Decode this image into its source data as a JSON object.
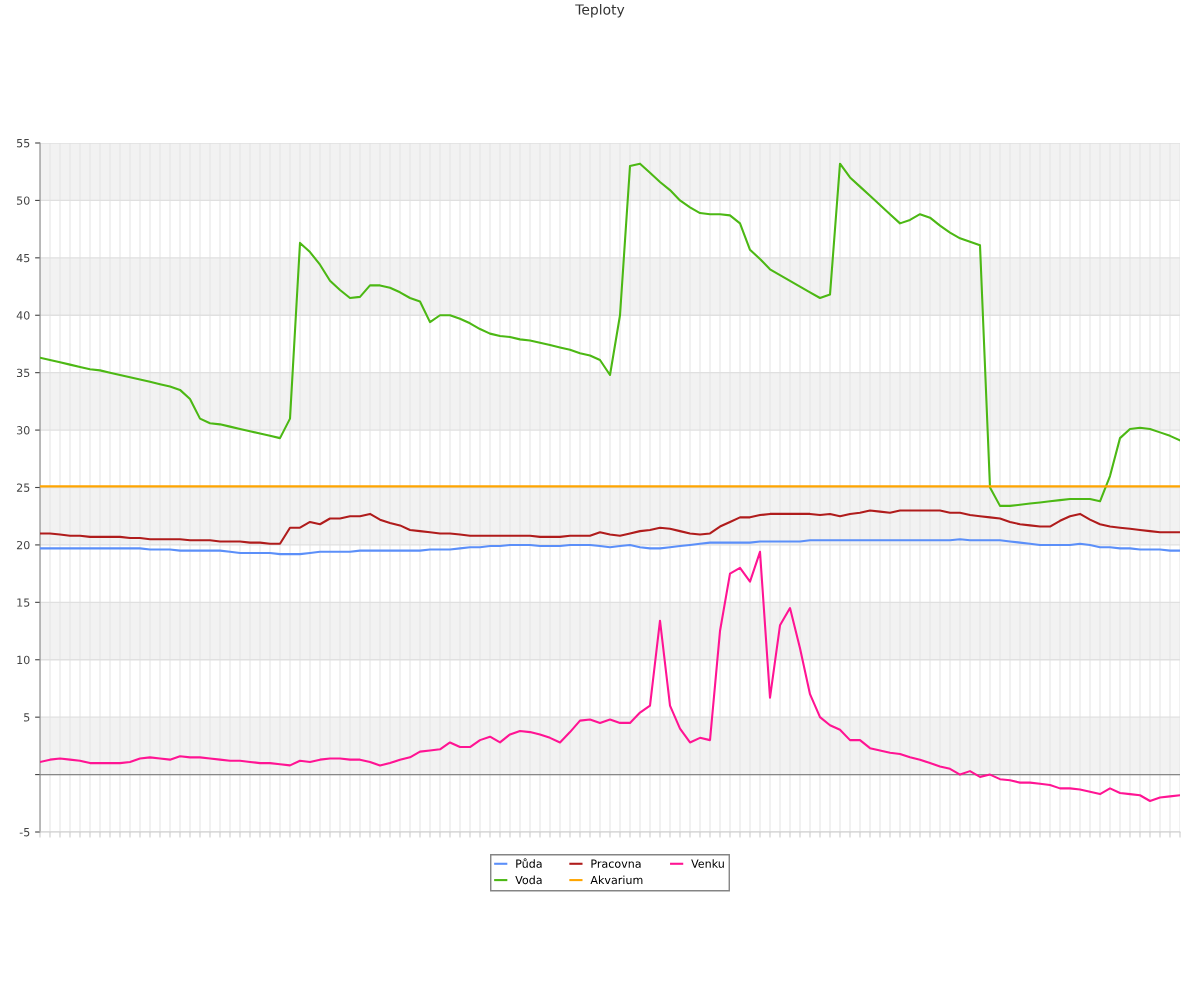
{
  "chart_data": {
    "type": "line",
    "title": "Teploty",
    "categories": [
      null,
      null,
      null,
      null,
      null,
      null,
      null,
      null,
      null,
      null,
      null,
      null,
      null,
      null,
      null,
      null,
      null,
      null,
      null,
      null,
      null,
      null,
      null,
      null,
      null,
      null,
      null,
      null,
      null,
      null,
      null,
      null,
      null,
      null,
      null,
      null,
      null,
      null,
      null,
      null,
      null,
      null,
      null,
      null,
      null,
      null,
      null,
      null,
      null,
      null,
      null,
      null,
      null,
      null,
      null,
      null,
      null,
      null,
      null,
      null,
      null,
      null,
      null,
      null,
      null,
      null,
      null,
      null,
      null,
      null,
      null,
      null,
      null,
      null,
      null,
      null,
      null,
      null,
      null,
      null,
      null,
      null,
      null,
      null,
      null,
      null,
      null,
      null,
      null,
      null,
      null,
      null,
      null,
      null,
      null,
      null,
      null,
      null,
      null,
      null,
      null,
      null,
      null,
      null,
      null,
      null,
      null,
      null,
      null,
      null,
      null,
      null,
      null,
      null,
      null
    ],
    "ylim": [
      -5,
      55
    ],
    "yticks": [
      -5,
      {
        "value": 0,
        "label": null
      },
      5,
      10,
      15,
      20,
      25,
      30,
      35,
      40,
      45,
      50,
      55
    ],
    "grid": true,
    "legend": "bottom",
    "marker": "none",
    "line_style": "solid",
    "series": [
      {
        "name": "Půda",
        "color": "#5b8ff9",
        "values": [
          19.7,
          19.7,
          19.7,
          19.7,
          19.7,
          19.7,
          19.7,
          19.7,
          19.7,
          19.7,
          19.7,
          19.6,
          19.6,
          19.6,
          19.5,
          19.5,
          19.5,
          19.5,
          19.5,
          19.4,
          19.3,
          19.3,
          19.3,
          19.3,
          19.2,
          19.2,
          19.2,
          19.3,
          19.4,
          19.4,
          19.4,
          19.4,
          19.5,
          19.5,
          19.5,
          19.5,
          19.5,
          19.5,
          19.5,
          19.6,
          19.6,
          19.6,
          19.7,
          19.8,
          19.8,
          19.9,
          19.9,
          20.0,
          20.0,
          20.0,
          19.9,
          19.9,
          19.9,
          20.0,
          20.0,
          20.0,
          19.9,
          19.8,
          19.9,
          20.0,
          19.8,
          19.7,
          19.7,
          19.8,
          19.9,
          20.0,
          20.1,
          20.2,
          20.2,
          20.2,
          20.2,
          20.2,
          20.3,
          20.3,
          20.3,
          20.3,
          20.3,
          20.4,
          20.4,
          20.4,
          20.4,
          20.4,
          20.4,
          20.4,
          20.4,
          20.4,
          20.4,
          20.4,
          20.4,
          20.4,
          20.4,
          20.4,
          20.5,
          20.4,
          20.4,
          20.4,
          20.4,
          20.3,
          20.2,
          20.1,
          20.0,
          20.0,
          20.0,
          20.0,
          20.1,
          20.0,
          19.8,
          19.8,
          19.7,
          19.7,
          19.6,
          19.6,
          19.6,
          19.5,
          19.5
        ]
      },
      {
        "name": "Voda",
        "color": "#4cb814",
        "values": [
          36.3,
          36.1,
          35.9,
          35.7,
          35.5,
          35.3,
          35.2,
          35.0,
          34.8,
          34.6,
          34.4,
          34.2,
          34.0,
          33.8,
          33.5,
          32.7,
          31.0,
          30.6,
          30.5,
          30.3,
          30.1,
          29.9,
          29.7,
          29.5,
          29.3,
          31.0,
          46.3,
          45.5,
          44.4,
          43.0,
          42.2,
          41.5,
          41.6,
          42.6,
          42.6,
          42.4,
          42.0,
          41.5,
          41.2,
          39.4,
          40.0,
          40.0,
          39.7,
          39.3,
          38.8,
          38.4,
          38.2,
          38.1,
          37.9,
          37.8,
          37.6,
          37.4,
          37.2,
          37.0,
          36.7,
          36.5,
          36.1,
          34.8,
          40.0,
          53.0,
          53.2,
          52.4,
          51.6,
          50.9,
          50.0,
          49.4,
          48.9,
          48.8,
          48.8,
          48.7,
          48.0,
          45.7,
          44.9,
          44.0,
          43.5,
          43.0,
          42.5,
          42.0,
          41.5,
          41.8,
          53.2,
          52.0,
          51.2,
          50.4,
          49.6,
          48.8,
          48.0,
          48.3,
          48.8,
          48.5,
          47.8,
          47.2,
          46.7,
          46.4,
          46.1,
          25.0,
          23.4,
          23.4,
          23.5,
          23.6,
          23.7,
          23.8,
          23.9,
          24.0,
          24.0,
          24.0,
          23.8,
          26.0,
          29.3,
          30.1,
          30.2,
          30.1,
          29.8,
          29.5,
          29.1
        ]
      },
      {
        "name": "Pracovna",
        "color": "#b01c1c",
        "values": [
          21.0,
          21.0,
          20.9,
          20.8,
          20.8,
          20.7,
          20.7,
          20.7,
          20.7,
          20.6,
          20.6,
          20.5,
          20.5,
          20.5,
          20.5,
          20.4,
          20.4,
          20.4,
          20.3,
          20.3,
          20.3,
          20.2,
          20.2,
          20.1,
          20.1,
          21.5,
          21.5,
          22.0,
          21.8,
          22.3,
          22.3,
          22.5,
          22.5,
          22.7,
          22.2,
          21.9,
          21.7,
          21.3,
          21.2,
          21.1,
          21.0,
          21.0,
          20.9,
          20.8,
          20.8,
          20.8,
          20.8,
          20.8,
          20.8,
          20.8,
          20.7,
          20.7,
          20.7,
          20.8,
          20.8,
          20.8,
          21.1,
          20.9,
          20.8,
          21.0,
          21.2,
          21.3,
          21.5,
          21.4,
          21.2,
          21.0,
          20.9,
          21.0,
          21.6,
          22.0,
          22.4,
          22.4,
          22.6,
          22.7,
          22.7,
          22.7,
          22.7,
          22.7,
          22.6,
          22.7,
          22.5,
          22.7,
          22.8,
          23.0,
          22.9,
          22.8,
          23.0,
          23.0,
          23.0,
          23.0,
          23.0,
          22.8,
          22.8,
          22.6,
          22.5,
          22.4,
          22.3,
          22.0,
          21.8,
          21.7,
          21.6,
          21.6,
          22.1,
          22.5,
          22.7,
          22.2,
          21.8,
          21.6,
          21.5,
          21.4,
          21.3,
          21.2,
          21.1,
          21.1,
          21.1
        ]
      },
      {
        "name": "Akvarium",
        "color": "#ffa500",
        "values": [
          25.1,
          25.1,
          25.1,
          25.1,
          25.1,
          25.1,
          25.1,
          25.1,
          25.1,
          25.1,
          25.1,
          25.1,
          25.1,
          25.1,
          25.1,
          25.1,
          25.1,
          25.1,
          25.1,
          25.1,
          25.1,
          25.1,
          25.1,
          25.1,
          25.1,
          25.1,
          25.1,
          25.1,
          25.1,
          25.1,
          25.1,
          25.1,
          25.1,
          25.1,
          25.1,
          25.1,
          25.1,
          25.1,
          25.1,
          25.1,
          25.1,
          25.1,
          25.1,
          25.1,
          25.1,
          25.1,
          25.1,
          25.1,
          25.1,
          25.1,
          25.1,
          25.1,
          25.1,
          25.1,
          25.1,
          25.1,
          25.1,
          25.1,
          25.1,
          25.1,
          25.1,
          25.1,
          25.1,
          25.1,
          25.1,
          25.1,
          25.1,
          25.1,
          25.1,
          25.1,
          25.1,
          25.1,
          25.1,
          25.1,
          25.1,
          25.1,
          25.1,
          25.1,
          25.1,
          25.1,
          25.1,
          25.1,
          25.1,
          25.1,
          25.1,
          25.1,
          25.1,
          25.1,
          25.1,
          25.1,
          25.1,
          25.1,
          25.1,
          25.1,
          25.1,
          25.1,
          25.1,
          25.1,
          25.1,
          25.1,
          25.1,
          25.1,
          25.1,
          25.1,
          25.1,
          25.1,
          25.1,
          25.1,
          25.1,
          25.1,
          25.1,
          25.1,
          25.1,
          25.1,
          25.1
        ]
      },
      {
        "name": "Venku",
        "color": "#ff1493",
        "values": [
          1.1,
          1.3,
          1.4,
          1.3,
          1.2,
          1.0,
          1.0,
          1.0,
          1.0,
          1.1,
          1.4,
          1.5,
          1.4,
          1.3,
          1.6,
          1.5,
          1.5,
          1.4,
          1.3,
          1.2,
          1.2,
          1.1,
          1.0,
          1.0,
          0.9,
          0.8,
          1.2,
          1.1,
          1.3,
          1.4,
          1.4,
          1.3,
          1.3,
          1.1,
          0.8,
          1.0,
          1.3,
          1.5,
          2.0,
          2.1,
          2.2,
          2.8,
          2.4,
          2.4,
          3.0,
          3.3,
          2.8,
          3.5,
          3.8,
          3.7,
          3.5,
          3.2,
          2.8,
          3.7,
          4.7,
          4.8,
          4.5,
          4.8,
          4.5,
          4.5,
          5.4,
          6.0,
          13.4,
          6.0,
          4.0,
          2.8,
          3.2,
          3.0,
          12.5,
          17.5,
          18.0,
          16.8,
          19.4,
          6.7,
          13.0,
          14.5,
          11.0,
          7.0,
          5.0,
          4.3,
          3.9,
          3.0,
          3.0,
          2.3,
          2.1,
          1.9,
          1.8,
          1.5,
          1.3,
          1.0,
          0.7,
          0.5,
          0.0,
          0.3,
          -0.2,
          0.0,
          -0.4,
          -0.5,
          -0.7,
          -0.7,
          -0.8,
          -0.9,
          -1.2,
          -1.2,
          -1.3,
          -1.5,
          -1.7,
          -1.2,
          -1.6,
          -1.7,
          -1.8,
          -2.3,
          -2.0,
          -1.9,
          -1.8
        ]
      }
    ]
  }
}
